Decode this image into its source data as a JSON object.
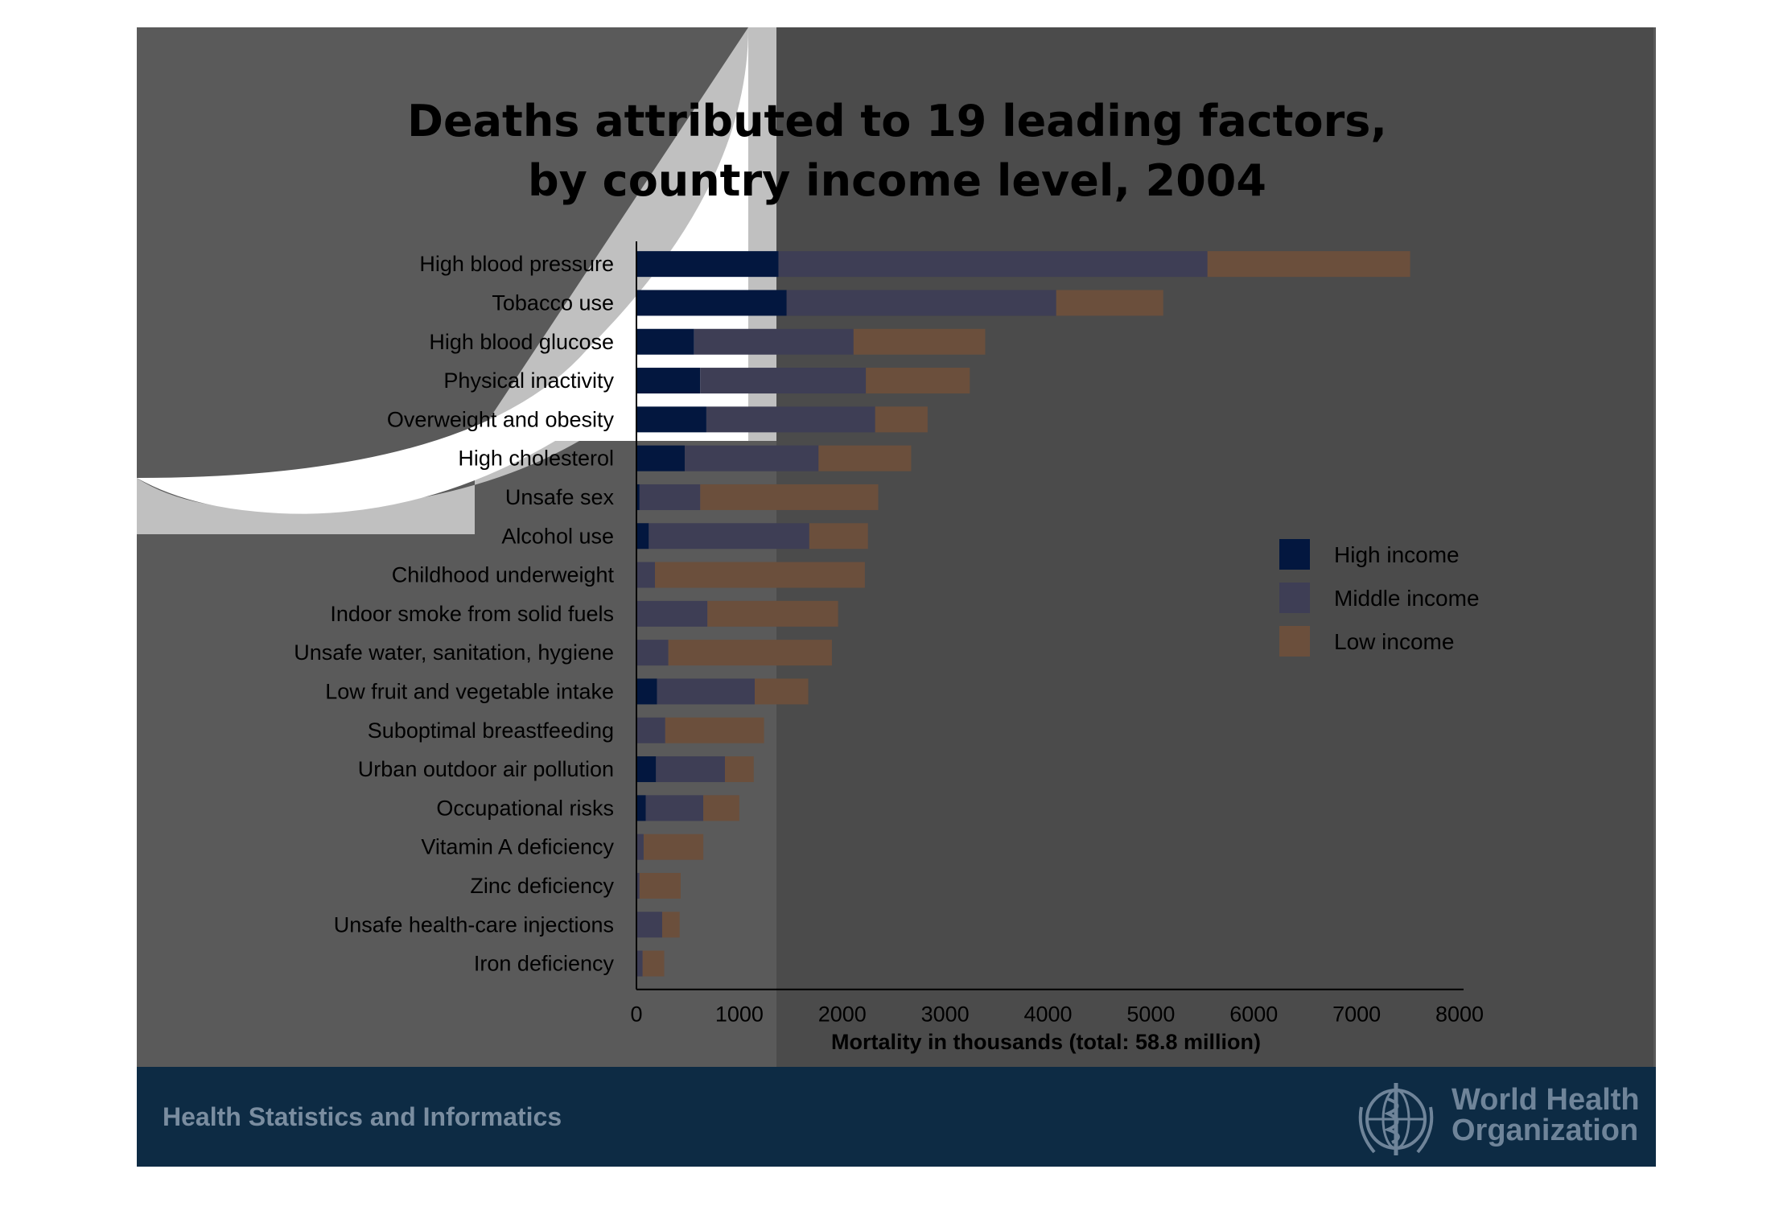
{
  "chart_data": {
    "type": "bar",
    "orientation": "horizontal",
    "stacked": true,
    "title": "Deaths attributed to 19 leading factors, by country income level, 2004",
    "title_lines": [
      "Deaths attributed to 19 leading factors,",
      "by country income level, 2004"
    ],
    "xlabel": "Mortality in thousands (total: 58.8 million)",
    "ylabel": "",
    "xlim": [
      0,
      8000
    ],
    "x_ticks": [
      0,
      1000,
      2000,
      3000,
      4000,
      5000,
      6000,
      7000,
      8000
    ],
    "legend_position": "right",
    "grid": false,
    "categories": [
      "High blood pressure",
      "Tobacco use",
      "High blood glucose",
      "Physical inactivity",
      "Overweight and obesity",
      "High cholesterol",
      "Unsafe sex",
      "Alcohol use",
      "Childhood underweight",
      "Indoor smoke from solid fuels",
      "Unsafe water, sanitation, hygiene",
      "Low fruit and vegetable intake",
      "Suboptimal breastfeeding",
      "Urban outdoor air pollution",
      "Occupational risks",
      "Vitamin A deficiency",
      "Zinc deficiency",
      "Unsafe health-care injections",
      "Iron deficiency"
    ],
    "series": [
      {
        "name": "High income",
        "color": "#03173f",
        "values": [
          1380,
          1460,
          560,
          620,
          680,
          470,
          30,
          120,
          0,
          0,
          0,
          200,
          0,
          190,
          90,
          0,
          0,
          0,
          0
        ]
      },
      {
        "name": "Middle income",
        "color": "#3e3e55",
        "values": [
          4170,
          2620,
          1550,
          1610,
          1640,
          1300,
          590,
          1560,
          180,
          690,
          310,
          950,
          280,
          670,
          560,
          70,
          30,
          250,
          60
        ]
      },
      {
        "name": "Low income",
        "color": "#6b4f3c",
        "values": [
          1970,
          1040,
          1280,
          1010,
          510,
          900,
          1730,
          570,
          2040,
          1270,
          1590,
          520,
          960,
          280,
          350,
          580,
          400,
          170,
          210
        ]
      }
    ]
  },
  "footer": {
    "department": "Health Statistics and Informatics",
    "org_line1": "World Health",
    "org_line2": "Organization"
  },
  "colors": {
    "background": "#5a5a5a",
    "footer_bg": "#0d2b44",
    "highlight_bar": "#1243d0"
  }
}
